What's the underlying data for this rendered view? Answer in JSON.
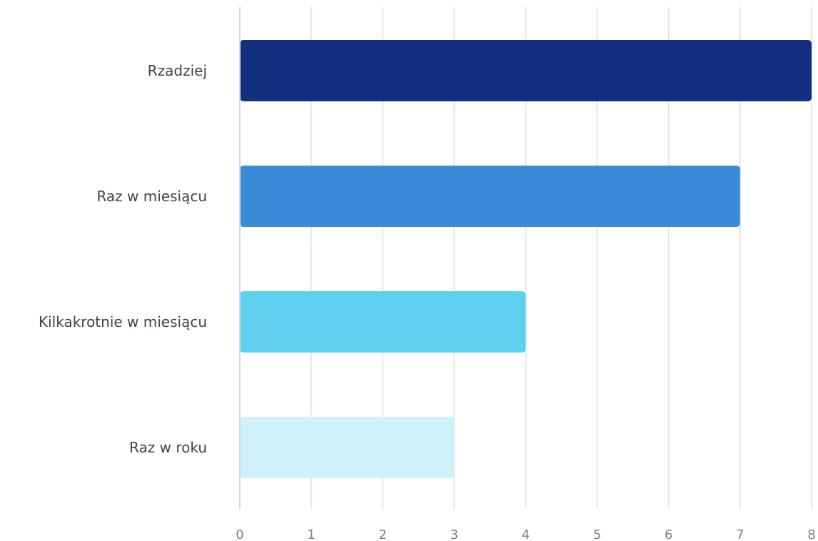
{
  "chart_data": {
    "type": "bar",
    "orientation": "horizontal",
    "categories": [
      "Rzadziej",
      "Raz w miesiącu",
      "Kilkakrotnie w miesiącu",
      "Raz w roku"
    ],
    "values": [
      8,
      7,
      4,
      3
    ],
    "colors": [
      "#132f80",
      "#3b8bd8",
      "#61cfee",
      "#cff1f9"
    ],
    "xlim": [
      0,
      8
    ],
    "x_ticks": [
      "0",
      "1",
      "2",
      "3",
      "4",
      "5",
      "6",
      "7",
      "8"
    ],
    "title": "",
    "xlabel": "",
    "ylabel": "",
    "grid": true,
    "legend": "none"
  }
}
